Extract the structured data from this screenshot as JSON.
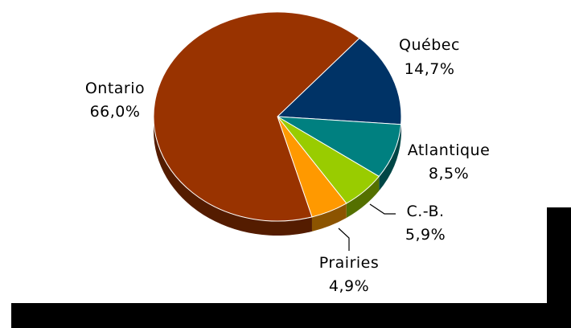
{
  "chart_data": {
    "type": "pie",
    "style": "3d",
    "slices": [
      {
        "name": "Québec",
        "value": 14.7,
        "label": "14,7%",
        "color": "#003366"
      },
      {
        "name": "Atlantique",
        "value": 8.5,
        "label": "8,5%",
        "color": "#008080"
      },
      {
        "name": "C.-B.",
        "value": 5.9,
        "label": "5,9%",
        "color": "#99CC00"
      },
      {
        "name": "Prairies",
        "value": 4.9,
        "label": "4,9%",
        "color": "#FF9900"
      },
      {
        "name": "Ontario",
        "value": 66.0,
        "label": "66,0%",
        "color": "#993300"
      }
    ],
    "legend": "none"
  }
}
